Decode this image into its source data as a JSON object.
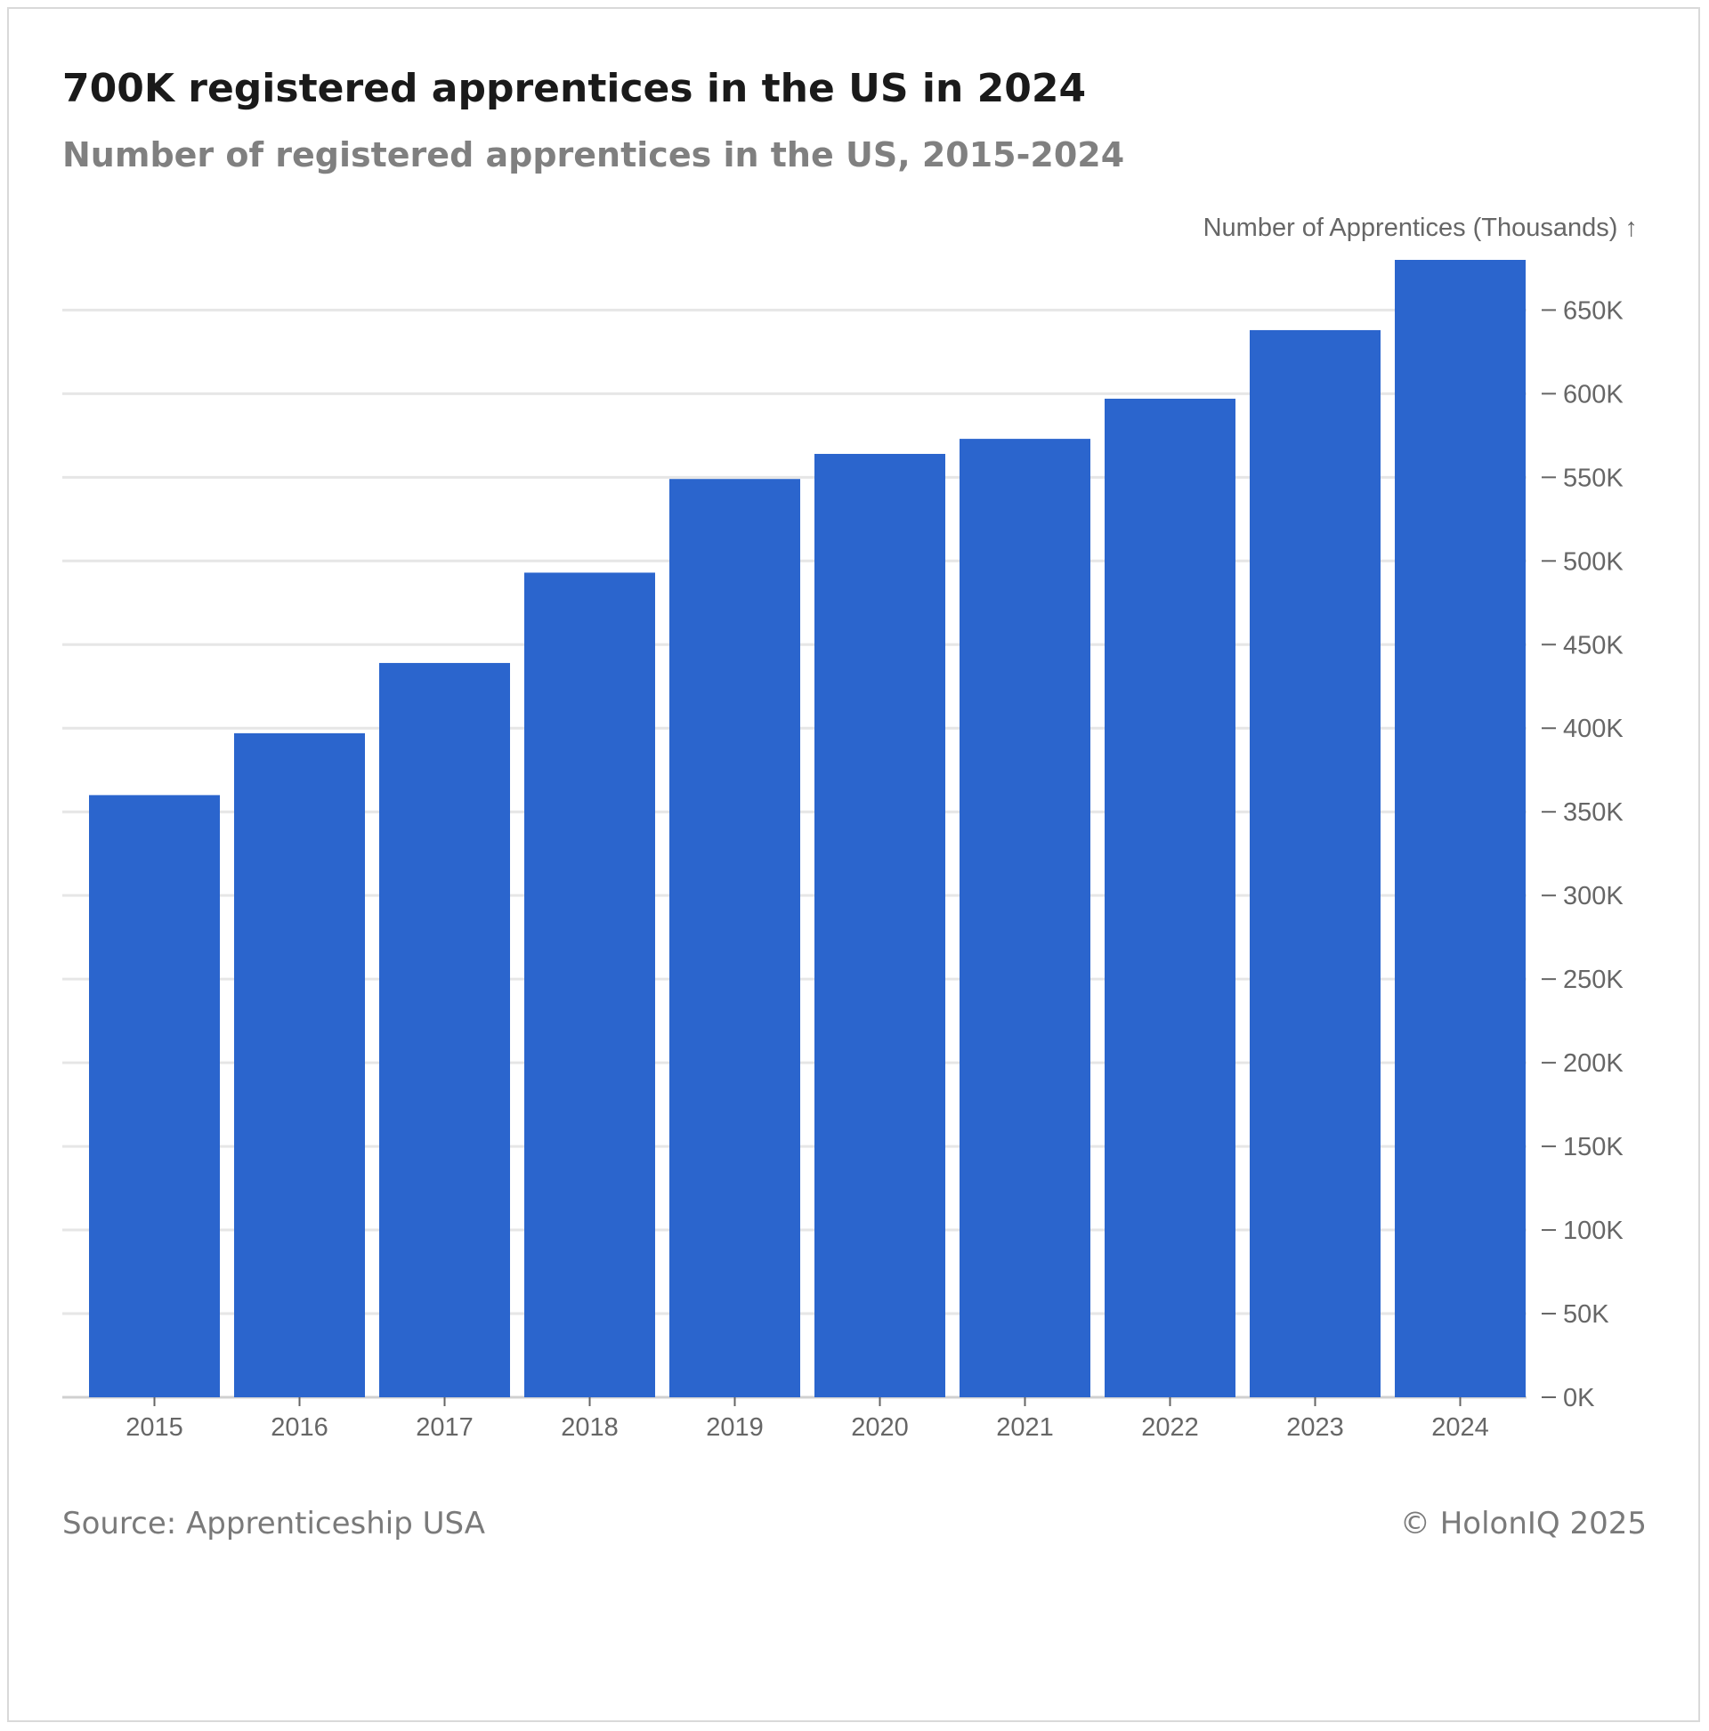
{
  "title": "700K registered apprentices in the US in 2024",
  "subtitle": "Number of registered apprentices in the US, 2015-2024",
  "footer": {
    "source": "Source: Apprenticeship USA",
    "copyright": "© HolonIQ 2025"
  },
  "colors": {
    "bar": "#2b65cd",
    "grid": "#e6e6e6",
    "tick": "#666666"
  },
  "chart_data": {
    "type": "bar",
    "title": "700K registered apprentices in the US in 2024",
    "ylabel": "Number of Apprentices (Thousands) ↑",
    "xlabel": "",
    "categories": [
      "2015",
      "2016",
      "2017",
      "2018",
      "2019",
      "2020",
      "2021",
      "2022",
      "2023",
      "2024"
    ],
    "values": [
      360,
      397,
      439,
      493,
      549,
      564,
      573,
      597,
      638,
      680
    ],
    "ylim": [
      0,
      680
    ],
    "y_ticks": [
      0,
      50,
      100,
      150,
      200,
      250,
      300,
      350,
      400,
      450,
      500,
      550,
      600,
      650
    ],
    "y_tick_labels": [
      "0K",
      "50K",
      "100K",
      "150K",
      "200K",
      "250K",
      "300K",
      "350K",
      "400K",
      "450K",
      "500K",
      "550K",
      "600K",
      "650K"
    ],
    "y_axis_side": "right",
    "grid": true
  }
}
